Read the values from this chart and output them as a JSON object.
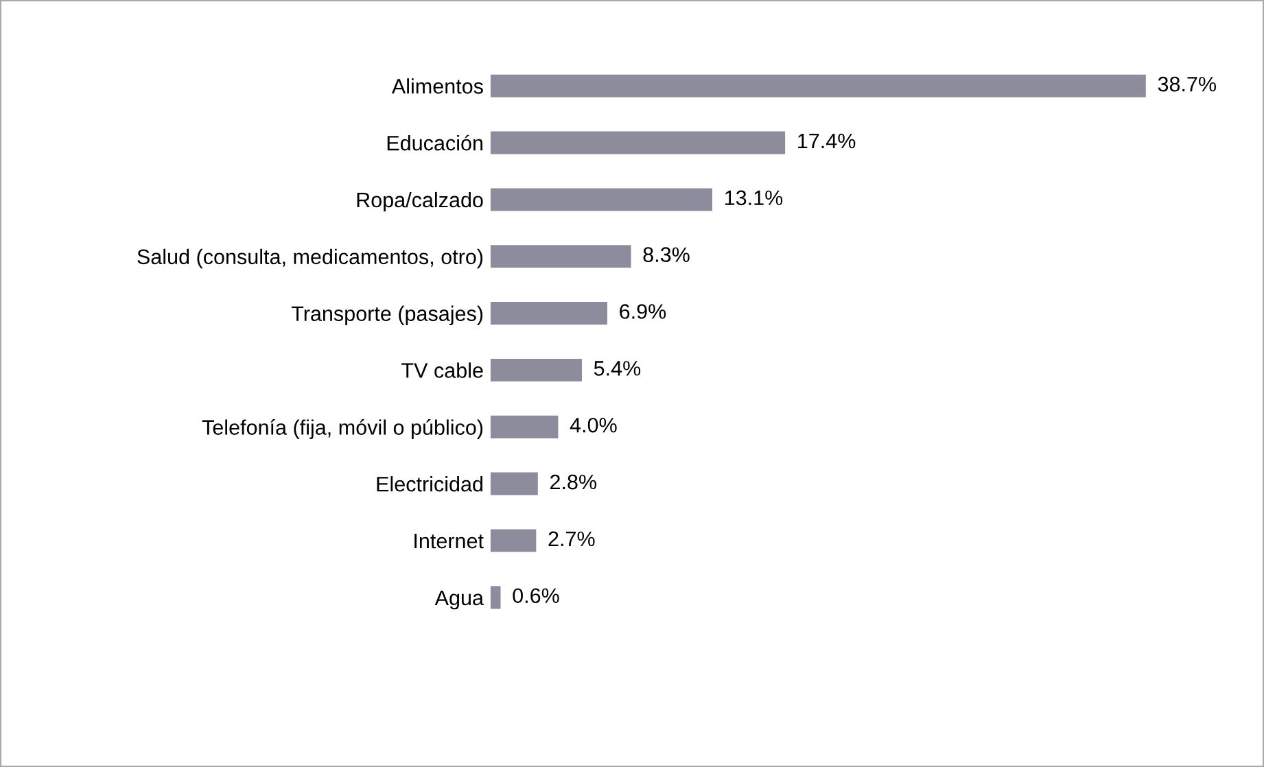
{
  "chart_data": {
    "type": "bar",
    "orientation": "horizontal",
    "categories": [
      "Alimentos",
      "Educación",
      "Ropa/calzado",
      "Salud (consulta, medicamentos, otro)",
      "Transporte (pasajes)",
      "TV cable",
      "Telefonía (fija, móvil o público)",
      "Electricidad",
      "Internet",
      "Agua"
    ],
    "values": [
      38.7,
      17.4,
      13.1,
      8.3,
      6.9,
      5.4,
      4.0,
      2.8,
      2.7,
      0.6
    ],
    "value_labels": [
      "38.7%",
      "17.4%",
      "13.1%",
      "8.3%",
      "6.9%",
      "5.4%",
      "4.0%",
      "2.8%",
      "2.7%",
      "0.6%"
    ],
    "color": "#8c8c9c",
    "grid": false,
    "legend": false
  }
}
